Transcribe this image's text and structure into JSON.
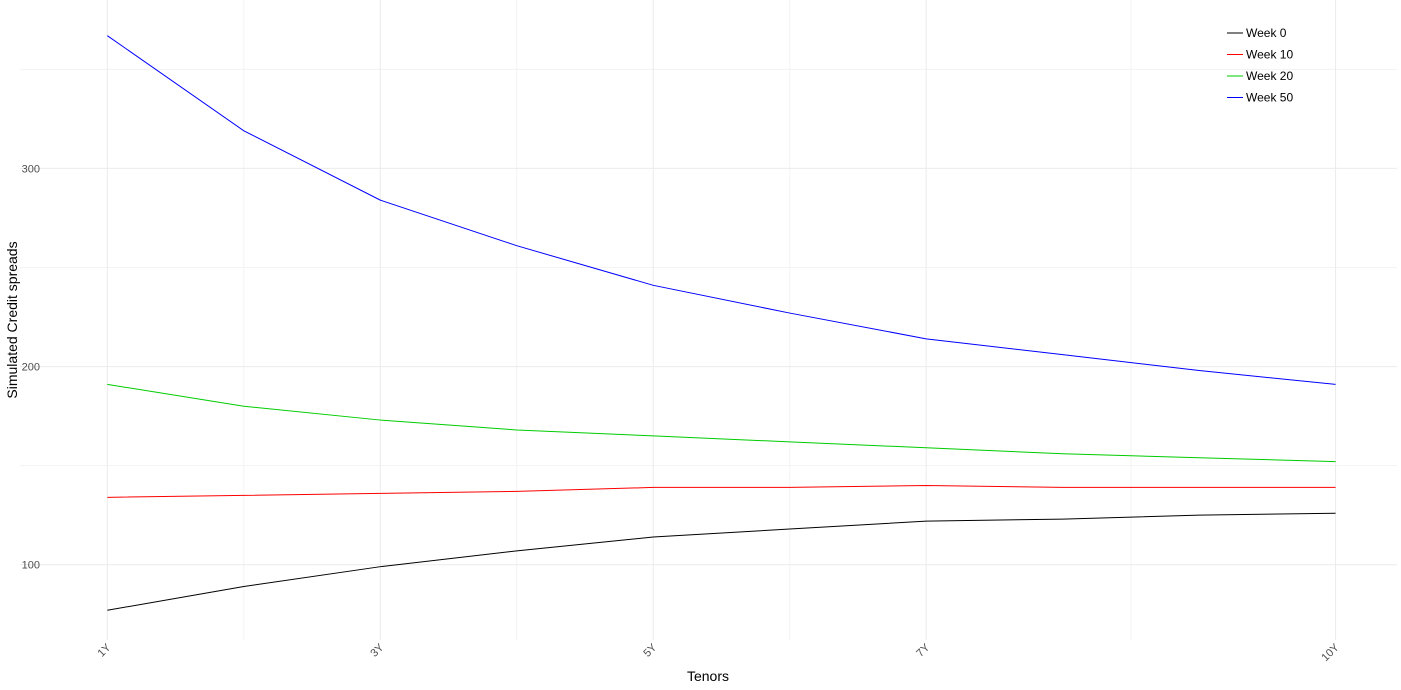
{
  "chart_data": {
    "type": "line",
    "title": "",
    "xlabel": "Tenors",
    "ylabel": "Simulated Credit spreads",
    "x": [
      1,
      2,
      3,
      4,
      5,
      6,
      7,
      8,
      9,
      10
    ],
    "x_ticks": [
      {
        "value": 1,
        "label": "1Y"
      },
      {
        "value": 3,
        "label": "3Y"
      },
      {
        "value": 5,
        "label": "5Y"
      },
      {
        "value": 7,
        "label": "7Y"
      },
      {
        "value": 10,
        "label": "10Y"
      }
    ],
    "x_minor_grid": [
      2,
      4,
      6,
      8.5
    ],
    "y_ticks": [
      100,
      200,
      300
    ],
    "y_minor_grid": [
      150,
      250,
      350
    ],
    "xlim": [
      0.36,
      10.45
    ],
    "ylim": [
      62,
      385
    ],
    "grid": true,
    "legend": "top-right",
    "series": [
      {
        "name": "Week 0",
        "color": "#000000",
        "values": [
          77,
          89,
          99,
          107,
          114,
          118,
          122,
          123,
          125,
          126
        ]
      },
      {
        "name": "Week 10",
        "color": "#ff0000",
        "values": [
          134,
          135,
          136,
          137,
          139,
          139,
          140,
          139,
          139,
          139
        ]
      },
      {
        "name": "Week 20",
        "color": "#00cc00",
        "values": [
          191,
          180,
          173,
          168,
          165,
          162,
          159,
          156,
          154,
          152
        ]
      },
      {
        "name": "Week 50",
        "color": "#0000ff",
        "values": [
          367,
          319,
          284,
          261,
          241,
          227,
          214,
          206,
          198,
          191
        ]
      }
    ]
  }
}
